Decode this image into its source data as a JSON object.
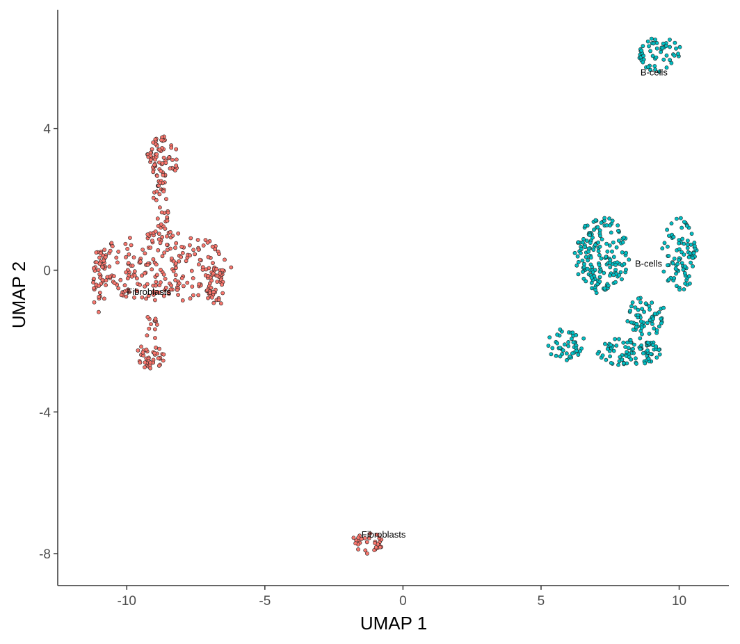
{
  "chart_data": {
    "type": "scatter",
    "xlabel": "UMAP 1",
    "ylabel": "UMAP 2",
    "xlim": [
      -12.5,
      11.8
    ],
    "ylim": [
      -8.9,
      7.35
    ],
    "x_ticks": [
      -10,
      -5,
      0,
      5,
      10
    ],
    "y_ticks": [
      -8,
      -4,
      0,
      4
    ],
    "x_tick_labels": [
      "-10",
      "-5",
      "0",
      "5",
      "10"
    ],
    "y_tick_labels": [
      "-8",
      "-4",
      "0",
      "4"
    ],
    "grid": false,
    "legend": "none",
    "series_colors": {
      "Fibroblasts": "#F8766D",
      "B-cells": "#00BFC4"
    },
    "point_outline_color": "#222222",
    "clusters": [
      {
        "series": "Fibroblasts",
        "shape": "ellipse",
        "cx": -8.7,
        "cy": 0.1,
        "rx": 2.5,
        "ry": 1.0,
        "n": 230
      },
      {
        "series": "Fibroblasts",
        "shape": "ellipse",
        "cx": -8.7,
        "cy": 3.2,
        "rx": 0.6,
        "ry": 0.6,
        "n": 70
      },
      {
        "series": "Fibroblasts",
        "shape": "ellipse",
        "cx": -8.75,
        "cy": 1.8,
        "rx": 0.3,
        "ry": 0.9,
        "n": 35
      },
      {
        "series": "Fibroblasts",
        "shape": "ellipse",
        "cx": -9.2,
        "cy": -2.45,
        "rx": 0.55,
        "ry": 0.35,
        "n": 40
      },
      {
        "series": "Fibroblasts",
        "shape": "ellipse",
        "cx": -9.1,
        "cy": -1.65,
        "rx": 0.25,
        "ry": 0.4,
        "n": 12
      },
      {
        "series": "Fibroblasts",
        "shape": "ellipse",
        "cx": -11.0,
        "cy": -0.3,
        "rx": 0.25,
        "ry": 0.9,
        "n": 40
      },
      {
        "series": "Fibroblasts",
        "shape": "ellipse",
        "cx": -6.8,
        "cy": -0.5,
        "rx": 0.3,
        "ry": 0.7,
        "n": 35
      },
      {
        "series": "Fibroblasts",
        "shape": "ellipse",
        "cx": -1.3,
        "cy": -7.7,
        "rx": 0.6,
        "ry": 0.3,
        "n": 30
      },
      {
        "series": "B-cells",
        "shape": "ellipse",
        "cx": 9.3,
        "cy": 6.1,
        "rx": 0.8,
        "ry": 0.5,
        "n": 55
      },
      {
        "series": "B-cells",
        "shape": "ellipse",
        "cx": 7.2,
        "cy": 0.4,
        "rx": 1.0,
        "ry": 1.1,
        "n": 170
      },
      {
        "series": "B-cells",
        "shape": "ellipse",
        "cx": 10.0,
        "cy": 0.5,
        "rx": 0.65,
        "ry": 1.1,
        "n": 90
      },
      {
        "series": "B-cells",
        "shape": "ellipse",
        "cx": 8.8,
        "cy": -1.3,
        "rx": 0.7,
        "ry": 0.6,
        "n": 60
      },
      {
        "series": "B-cells",
        "shape": "ellipse",
        "cx": 8.2,
        "cy": -2.3,
        "rx": 1.2,
        "ry": 0.4,
        "n": 90
      },
      {
        "series": "B-cells",
        "shape": "ellipse",
        "cx": 5.9,
        "cy": -2.1,
        "rx": 0.7,
        "ry": 0.45,
        "n": 45
      }
    ],
    "labels": [
      {
        "text": "Fibroblasts",
        "x": -10.0,
        "y": -0.7
      },
      {
        "text": "Fibroblasts",
        "x": -1.5,
        "y": -7.55
      },
      {
        "text": "B-cells",
        "x": 8.6,
        "y": 5.5
      },
      {
        "text": "B-cells",
        "x": 8.4,
        "y": 0.1
      }
    ]
  }
}
